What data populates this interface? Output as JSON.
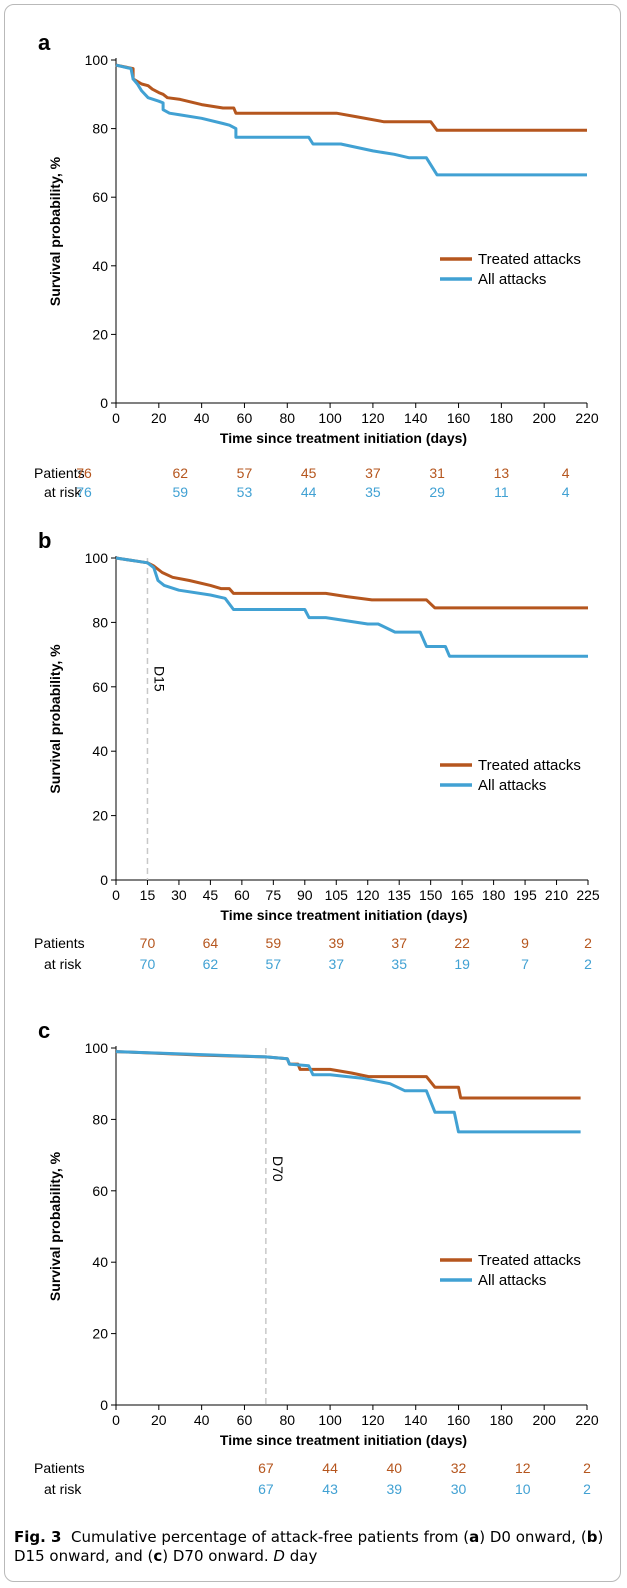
{
  "figure": {
    "caption_label": "Fig. 3",
    "caption_parts": [
      "Cumulative percentage of attack-free patients from (",
      "a",
      ") D0 onward, (",
      "b",
      ") D15 onward, and (",
      "c",
      ") D70 onward. ",
      "D",
      " day"
    ]
  },
  "colors": {
    "treated": "#b5561e",
    "all": "#41a1d3",
    "marker_line": "#c8c8c8"
  },
  "chart_data": [
    {
      "type": "line",
      "panel_label": "a",
      "xlabel": "Time since treatment initiation (days)",
      "ylabel": "Survival probability, %",
      "xlim": [
        0,
        220
      ],
      "ylim": [
        0,
        100
      ],
      "xticks": [
        0,
        20,
        40,
        60,
        80,
        100,
        120,
        140,
        160,
        180,
        200,
        220
      ],
      "yticks": [
        0,
        20,
        40,
        60,
        80,
        100
      ],
      "grid": false,
      "legend_position": "right-center",
      "series": [
        {
          "name": "Treated attacks",
          "color": "#b5561e",
          "points": [
            [
              0,
              98.5
            ],
            [
              8,
              97.5
            ],
            [
              8,
              94.5
            ],
            [
              12,
              93
            ],
            [
              15,
              92.5
            ],
            [
              17,
              91.5
            ],
            [
              20,
              90.5
            ],
            [
              22,
              90
            ],
            [
              24,
              89
            ],
            [
              30,
              88.5
            ],
            [
              40,
              87
            ],
            [
              50,
              86
            ],
            [
              55,
              86
            ],
            [
              56,
              84.5
            ],
            [
              103,
              84.5
            ],
            [
              112,
              83.5
            ],
            [
              125,
              82
            ],
            [
              147,
              82
            ],
            [
              150,
              79.5
            ],
            [
              220,
              79.5
            ]
          ]
        },
        {
          "name": "All attacks",
          "color": "#41a1d3",
          "points": [
            [
              0,
              98.5
            ],
            [
              7,
              97.5
            ],
            [
              8,
              94.5
            ],
            [
              10,
              93
            ],
            [
              12,
              91
            ],
            [
              15,
              89
            ],
            [
              20,
              88
            ],
            [
              22,
              87.5
            ],
            [
              22,
              85.5
            ],
            [
              25,
              84.5
            ],
            [
              30,
              84
            ],
            [
              40,
              83
            ],
            [
              50,
              81.5
            ],
            [
              53,
              81
            ],
            [
              56,
              80
            ],
            [
              56,
              77.5
            ],
            [
              90,
              77.5
            ],
            [
              92,
              75.5
            ],
            [
              105,
              75.5
            ],
            [
              120,
              73.5
            ],
            [
              130,
              72.5
            ],
            [
              137,
              71.5
            ],
            [
              145,
              71.5
            ],
            [
              150,
              66.5
            ],
            [
              220,
              66.5
            ]
          ]
        }
      ],
      "at_risk": {
        "label_line1": "Patients",
        "label_line2": "at risk",
        "x": [
          0,
          30,
          60,
          90,
          120,
          150,
          180,
          210
        ],
        "treated": [
          "76",
          "62",
          "57",
          "45",
          "37",
          "31",
          "13",
          "4"
        ],
        "all": [
          "76",
          "59",
          "53",
          "44",
          "35",
          "29",
          "11",
          "4"
        ]
      }
    },
    {
      "type": "line",
      "panel_label": "b",
      "xlabel": "Time since treatment initiation (days)",
      "ylabel": "Survival probability, %",
      "xlim": [
        0,
        225
      ],
      "ylim": [
        0,
        100
      ],
      "xticks": [
        0,
        15,
        30,
        45,
        60,
        75,
        90,
        105,
        120,
        135,
        150,
        165,
        180,
        195,
        210,
        225
      ],
      "yticks": [
        0,
        20,
        40,
        60,
        80,
        100
      ],
      "grid": false,
      "legend_position": "right-center",
      "reference_line": {
        "x": 15,
        "label": "D15"
      },
      "series": [
        {
          "name": "Treated attacks",
          "color": "#b5561e",
          "points": [
            [
              0,
              100
            ],
            [
              5,
              99.5
            ],
            [
              10,
              99
            ],
            [
              15,
              98.5
            ],
            [
              18,
              97.5
            ],
            [
              22,
              95.5
            ],
            [
              27,
              94
            ],
            [
              35,
              93
            ],
            [
              45,
              91.5
            ],
            [
              50,
              90.5
            ],
            [
              54,
              90.5
            ],
            [
              56,
              89
            ],
            [
              100,
              89
            ],
            [
              110,
              88
            ],
            [
              122,
              87
            ],
            [
              148,
              87
            ],
            [
              152,
              84.5
            ],
            [
              225,
              84.5
            ]
          ]
        },
        {
          "name": "All attacks",
          "color": "#41a1d3",
          "points": [
            [
              0,
              100
            ],
            [
              5,
              99.5
            ],
            [
              10,
              99
            ],
            [
              15,
              98.5
            ],
            [
              18,
              97
            ],
            [
              20,
              93
            ],
            [
              23,
              91.5
            ],
            [
              30,
              90
            ],
            [
              45,
              88.5
            ],
            [
              52,
              87.5
            ],
            [
              56,
              84
            ],
            [
              90,
              84
            ],
            [
              92,
              81.5
            ],
            [
              100,
              81.5
            ],
            [
              120,
              79.5
            ],
            [
              125,
              79.5
            ],
            [
              133,
              77
            ],
            [
              145,
              77
            ],
            [
              148,
              72.5
            ],
            [
              157,
              72.5
            ],
            [
              159,
              69.5
            ],
            [
              225,
              69.5
            ]
          ]
        }
      ],
      "at_risk": {
        "label_line1": "Patients",
        "label_line2": "at risk",
        "x": [
          15,
          45,
          75,
          105,
          135,
          165,
          195,
          225
        ],
        "treated": [
          "70",
          "64",
          "59",
          "39",
          "37",
          "22",
          "9",
          "2"
        ],
        "all": [
          "70",
          "62",
          "57",
          "37",
          "35",
          "19",
          "7",
          "2"
        ]
      }
    },
    {
      "type": "line",
      "panel_label": "c",
      "xlabel": "Time since treatment initiation (days)",
      "ylabel": "Survival probability, %",
      "xlim": [
        0,
        220
      ],
      "ylim": [
        0,
        100
      ],
      "xticks": [
        0,
        20,
        40,
        60,
        80,
        100,
        120,
        140,
        160,
        180,
        200,
        220
      ],
      "yticks": [
        0,
        20,
        40,
        60,
        80,
        100
      ],
      "grid": false,
      "legend_position": "right-center",
      "reference_line": {
        "x": 70,
        "label": "D70"
      },
      "series": [
        {
          "name": "Treated attacks",
          "color": "#b5561e",
          "points": [
            [
              0,
              99
            ],
            [
              40,
              98
            ],
            [
              70,
              97.5
            ],
            [
              80,
              97
            ],
            [
              81,
              95.5
            ],
            [
              85,
              95.5
            ],
            [
              86,
              94
            ],
            [
              100,
              94
            ],
            [
              110,
              93
            ],
            [
              118,
              92
            ],
            [
              145,
              92
            ],
            [
              149,
              89
            ],
            [
              160,
              89
            ],
            [
              161,
              86
            ],
            [
              217,
              86
            ]
          ]
        },
        {
          "name": "All attacks",
          "color": "#41a1d3",
          "points": [
            [
              0,
              99
            ],
            [
              70,
              97.5
            ],
            [
              80,
              97
            ],
            [
              81,
              95.5
            ],
            [
              90,
              95
            ],
            [
              92,
              92.5
            ],
            [
              100,
              92.5
            ],
            [
              115,
              91.5
            ],
            [
              128,
              90
            ],
            [
              135,
              88
            ],
            [
              145,
              88
            ],
            [
              149,
              82
            ],
            [
              158,
              82
            ],
            [
              160,
              76.5
            ],
            [
              217,
              76.5
            ]
          ]
        }
      ],
      "at_risk": {
        "label_line1": "Patients",
        "label_line2": "at risk",
        "x": [
          70,
          100,
          130,
          160,
          190,
          220
        ],
        "treated": [
          "67",
          "44",
          "40",
          "32",
          "12",
          "2"
        ],
        "all": [
          "67",
          "43",
          "39",
          "30",
          "10",
          "2"
        ]
      }
    }
  ]
}
